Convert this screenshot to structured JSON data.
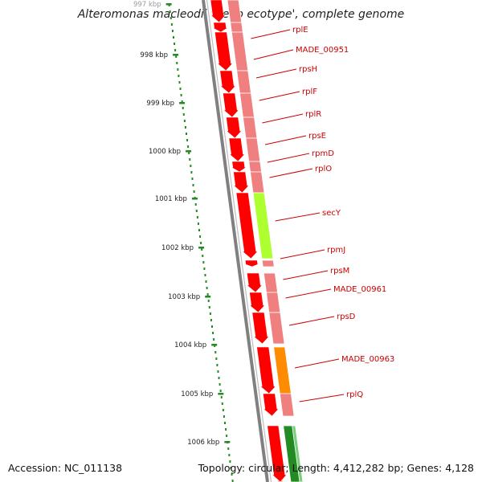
{
  "title": "Alteromonas macleodii 'Deep ecotype', complete genome",
  "accession": "Accession: NC_011138",
  "topology": "Topology: circular; Length: 4,412,282 bp; Genes: 4,128",
  "scale_labels": [
    "997 kbp",
    "998 kbp",
    "999 kbp",
    "1000 kbp",
    "1001 kbp",
    "1002 kbp",
    "1003 kbp",
    "1004 kbp",
    "1005 kbp",
    "1006 kbp"
  ],
  "genes": [
    {
      "name": "rplE"
    },
    {
      "name": "MADE_00951"
    },
    {
      "name": "rpsH"
    },
    {
      "name": "rplF"
    },
    {
      "name": "rplR"
    },
    {
      "name": "rpsE"
    },
    {
      "name": "rpmD"
    },
    {
      "name": "rplO"
    },
    {
      "name": "secY"
    },
    {
      "name": "rpmJ"
    },
    {
      "name": "rpsM"
    },
    {
      "name": "MADE_00961"
    },
    {
      "name": "rpsD"
    },
    {
      "name": "MADE_00963"
    },
    {
      "name": "rplQ"
    }
  ],
  "colors": {
    "gene_arrow": "#ff0000",
    "cog_default": "#f08080",
    "cog_secY": "#adff2f",
    "cog_MADE_00963": "#ff8c00",
    "cog_next": "#228b22",
    "backbone": "#808080",
    "scale": "#228b22",
    "label": "#cc0000"
  }
}
